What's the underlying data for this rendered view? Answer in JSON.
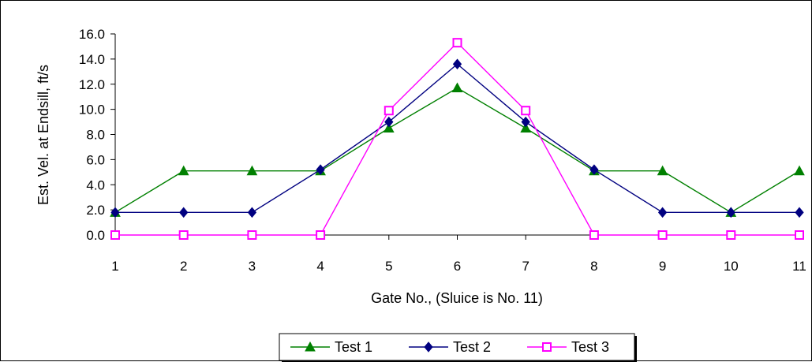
{
  "chart_data": {
    "type": "line",
    "title": "",
    "xlabel": "Gate No., (Sluice is No. 11)",
    "ylabel": "Est. Vel. at Endsill, ft/s",
    "categories": [
      "1",
      "2",
      "3",
      "4",
      "5",
      "6",
      "7",
      "8",
      "9",
      "10",
      "11"
    ],
    "ylim": [
      0,
      16
    ],
    "yticks": [
      "0.0",
      "2.0",
      "4.0",
      "6.0",
      "8.0",
      "10.0",
      "12.0",
      "14.0",
      "16.0"
    ],
    "grid": false,
    "legend_position": "bottom",
    "series": [
      {
        "name": "Test 1",
        "color": "#008000",
        "marker": "triangle",
        "values": [
          1.8,
          5.1,
          5.1,
          5.1,
          8.5,
          11.7,
          8.5,
          5.1,
          5.1,
          1.8,
          5.1
        ]
      },
      {
        "name": "Test 2",
        "color": "#000080",
        "marker": "diamond",
        "values": [
          1.8,
          1.8,
          1.8,
          5.2,
          9.0,
          13.6,
          9.0,
          5.2,
          1.8,
          1.8,
          1.8
        ]
      },
      {
        "name": "Test 3",
        "color": "#ff00ff",
        "marker": "square",
        "values": [
          0.0,
          0.0,
          0.0,
          0.0,
          9.9,
          15.3,
          9.9,
          0.0,
          0.0,
          0.0,
          0.0
        ]
      }
    ]
  }
}
